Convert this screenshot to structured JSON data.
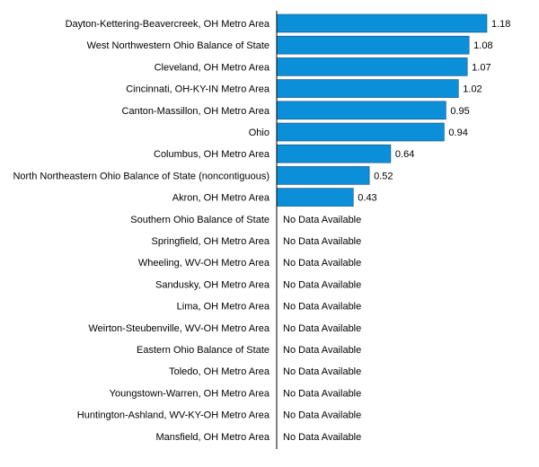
{
  "chart_data": {
    "type": "bar",
    "orientation": "horizontal",
    "title": "",
    "xlabel": "",
    "ylabel": "",
    "xlim": [
      0,
      1.18
    ],
    "grid": false,
    "legend": "none",
    "bar_color": "#0a8fd8",
    "no_data_text": "No Data Available",
    "categories": [
      "Dayton-Kettering-Beavercreek, OH Metro Area",
      "West Northwestern Ohio Balance of State",
      "Cleveland, OH Metro Area",
      "Cincinnati, OH-KY-IN Metro Area",
      "Canton-Massillon, OH Metro Area",
      "Ohio",
      "Columbus, OH Metro Area",
      "North Northeastern Ohio Balance of State (noncontiguous)",
      "Akron, OH Metro Area",
      "Southern Ohio Balance of State",
      "Springfield, OH Metro Area",
      "Wheeling, WV-OH Metro Area",
      "Sandusky, OH Metro Area",
      "Lima, OH Metro Area",
      "Weirton-Steubenville, WV-OH Metro Area",
      "Eastern Ohio Balance of State",
      "Toledo, OH Metro Area",
      "Youngstown-Warren, OH Metro Area",
      "Huntington-Ashland, WV-KY-OH Metro Area",
      "Mansfield, OH Metro Area"
    ],
    "values": [
      1.18,
      1.08,
      1.07,
      1.02,
      0.95,
      0.94,
      0.64,
      0.52,
      0.43,
      null,
      null,
      null,
      null,
      null,
      null,
      null,
      null,
      null,
      null,
      null
    ],
    "value_labels": [
      "1.18",
      "1.08",
      "1.07",
      "1.02",
      "0.95",
      "0.94",
      "0.64",
      "0.52",
      "0.43",
      "",
      "",
      "",
      "",
      "",
      "",
      "",
      "",
      "",
      "",
      ""
    ]
  }
}
